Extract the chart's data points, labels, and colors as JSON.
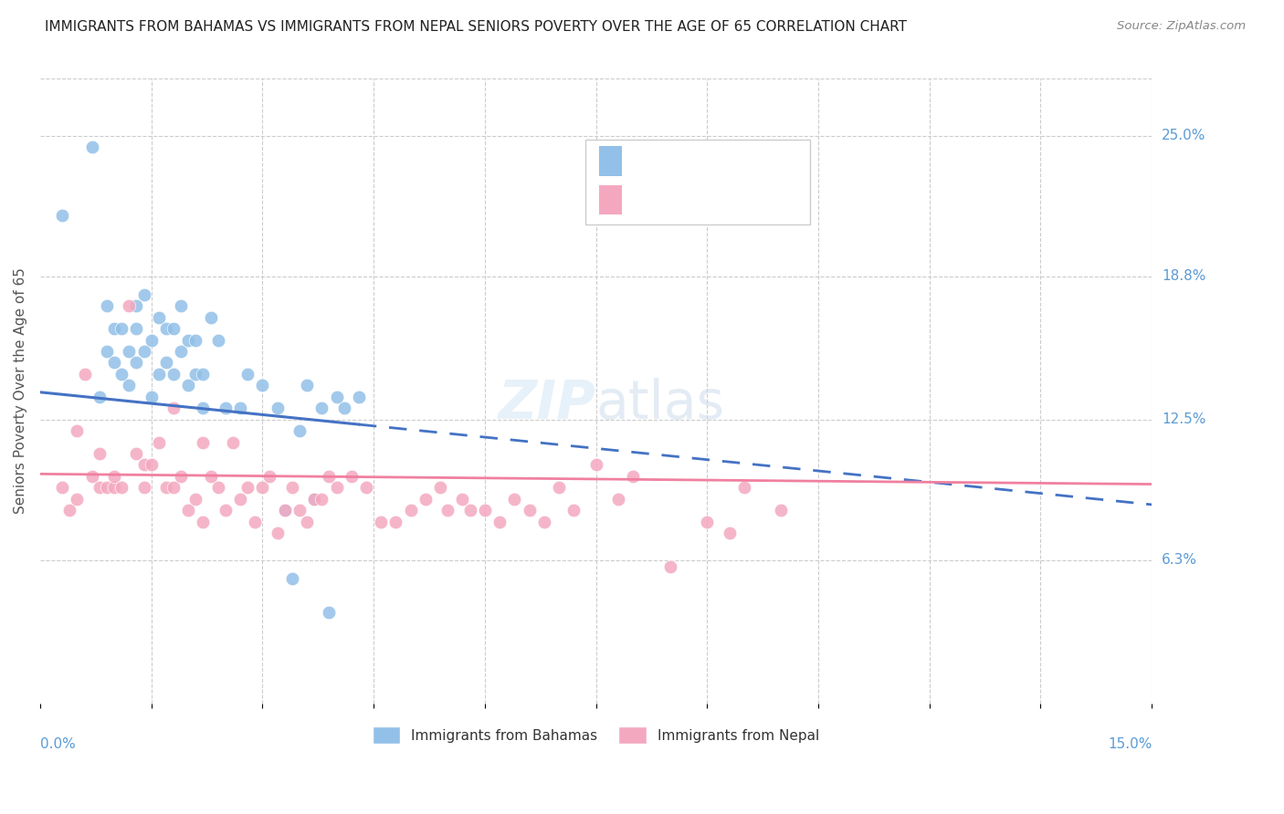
{
  "title": "IMMIGRANTS FROM BAHAMAS VS IMMIGRANTS FROM NEPAL SENIORS POVERTY OVER THE AGE OF 65 CORRELATION CHART",
  "source": "Source: ZipAtlas.com",
  "ylabel": "Seniors Poverty Over the Age of 65",
  "yticks": [
    "25.0%",
    "18.8%",
    "12.5%",
    "6.3%"
  ],
  "ytick_values": [
    0.25,
    0.188,
    0.125,
    0.063
  ],
  "xmin": 0.0,
  "xmax": 0.15,
  "ymin": 0.0,
  "ymax": 0.275,
  "color_bahamas": "#92C0E8",
  "color_nepal": "#F4A8C0",
  "color_blue_line": "#4472C4",
  "color_pink_line": "#F080A0",
  "title_fontsize": 11,
  "axis_label_color": "#5B9BD5",
  "bahamas_points_x": [
    0.003,
    0.007,
    0.008,
    0.009,
    0.009,
    0.01,
    0.01,
    0.011,
    0.011,
    0.012,
    0.012,
    0.013,
    0.013,
    0.013,
    0.014,
    0.014,
    0.015,
    0.015,
    0.016,
    0.016,
    0.017,
    0.017,
    0.018,
    0.018,
    0.019,
    0.019,
    0.02,
    0.02,
    0.021,
    0.021,
    0.022,
    0.022,
    0.023,
    0.024,
    0.025,
    0.027,
    0.028,
    0.03,
    0.032,
    0.033,
    0.034,
    0.035,
    0.036,
    0.037,
    0.038,
    0.039,
    0.04,
    0.041,
    0.043
  ],
  "bahamas_points_y": [
    0.215,
    0.245,
    0.135,
    0.175,
    0.155,
    0.165,
    0.15,
    0.165,
    0.145,
    0.155,
    0.14,
    0.175,
    0.165,
    0.15,
    0.18,
    0.155,
    0.16,
    0.135,
    0.17,
    0.145,
    0.165,
    0.15,
    0.145,
    0.165,
    0.155,
    0.175,
    0.16,
    0.14,
    0.16,
    0.145,
    0.13,
    0.145,
    0.17,
    0.16,
    0.13,
    0.13,
    0.145,
    0.14,
    0.13,
    0.085,
    0.055,
    0.12,
    0.14,
    0.09,
    0.13,
    0.04,
    0.135,
    0.13,
    0.135
  ],
  "nepal_points_x": [
    0.003,
    0.004,
    0.005,
    0.005,
    0.006,
    0.007,
    0.008,
    0.008,
    0.009,
    0.01,
    0.01,
    0.011,
    0.012,
    0.013,
    0.014,
    0.014,
    0.015,
    0.016,
    0.017,
    0.018,
    0.018,
    0.019,
    0.02,
    0.021,
    0.022,
    0.022,
    0.023,
    0.024,
    0.025,
    0.026,
    0.027,
    0.028,
    0.029,
    0.03,
    0.031,
    0.032,
    0.033,
    0.034,
    0.035,
    0.036,
    0.037,
    0.038,
    0.039,
    0.04,
    0.042,
    0.044,
    0.046,
    0.048,
    0.05,
    0.052,
    0.054,
    0.055,
    0.057,
    0.058,
    0.06,
    0.062,
    0.064,
    0.066,
    0.068,
    0.07,
    0.072,
    0.075,
    0.078,
    0.08,
    0.085,
    0.09,
    0.093,
    0.095,
    0.1
  ],
  "nepal_points_y": [
    0.095,
    0.085,
    0.09,
    0.12,
    0.145,
    0.1,
    0.11,
    0.095,
    0.095,
    0.095,
    0.1,
    0.095,
    0.175,
    0.11,
    0.095,
    0.105,
    0.105,
    0.115,
    0.095,
    0.095,
    0.13,
    0.1,
    0.085,
    0.09,
    0.08,
    0.115,
    0.1,
    0.095,
    0.085,
    0.115,
    0.09,
    0.095,
    0.08,
    0.095,
    0.1,
    0.075,
    0.085,
    0.095,
    0.085,
    0.08,
    0.09,
    0.09,
    0.1,
    0.095,
    0.1,
    0.095,
    0.08,
    0.08,
    0.085,
    0.09,
    0.095,
    0.085,
    0.09,
    0.085,
    0.085,
    0.08,
    0.09,
    0.085,
    0.08,
    0.095,
    0.085,
    0.105,
    0.09,
    0.1,
    0.06,
    0.08,
    0.075,
    0.095,
    0.085
  ]
}
